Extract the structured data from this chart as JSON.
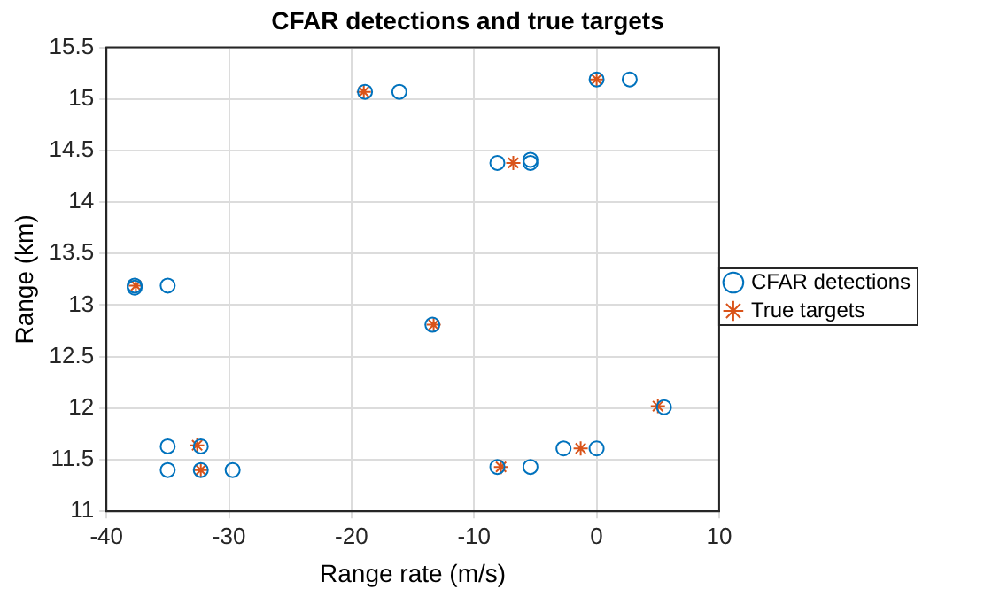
{
  "chart_data": {
    "type": "scatter",
    "title": "CFAR detections and true targets",
    "xlabel": "Range rate (m/s)",
    "ylabel": "Range (km)",
    "xlim": [
      -40,
      10
    ],
    "xticks": [
      -40,
      -30,
      -20,
      -10,
      0,
      10
    ],
    "ylim": [
      11,
      15.5
    ],
    "yticks": [
      11,
      11.5,
      12,
      12.5,
      13,
      13.5,
      14,
      14.5,
      15,
      15.5
    ],
    "grid": true,
    "legend": "right",
    "series": [
      {
        "name": "CFAR detections",
        "color": "#0072bd",
        "marker": "circle",
        "x": [
          -18.9,
          -16.1,
          0,
          2.7,
          -8.1,
          -5.4,
          -5.4,
          -37.7,
          -37.7,
          -35,
          -13.4,
          5.5,
          -35,
          -32.3,
          -2.7,
          0,
          -35,
          -32.3,
          -29.7,
          -8.1,
          -5.4
        ],
        "values": [
          15.07,
          15.07,
          15.19,
          15.19,
          14.38,
          14.41,
          14.38,
          13.19,
          13.17,
          13.19,
          12.81,
          12.01,
          11.63,
          11.63,
          11.61,
          11.61,
          11.4,
          11.4,
          11.4,
          11.43,
          11.43
        ]
      },
      {
        "name": "True targets",
        "color": "#d95319",
        "marker": "cross",
        "x": [
          -19,
          0,
          -6.8,
          -37.6,
          -13.3,
          5,
          -32.6,
          -32.3,
          -7.8,
          -1.3
        ],
        "values": [
          15.07,
          15.19,
          14.38,
          13.19,
          12.81,
          12.02,
          11.64,
          11.4,
          11.43,
          11.61
        ]
      }
    ]
  }
}
